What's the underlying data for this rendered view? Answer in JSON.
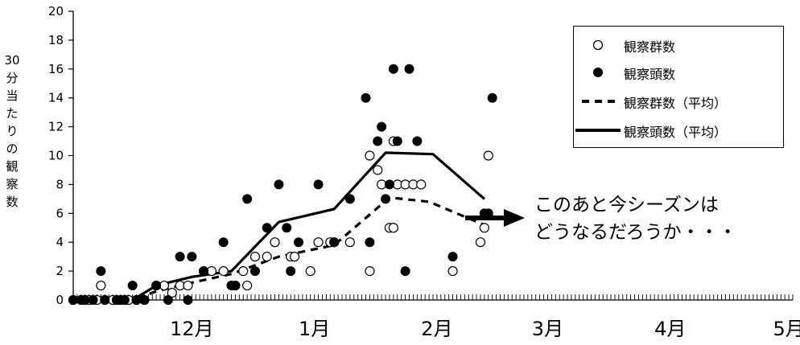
{
  "chart_data": {
    "type": "scatter",
    "title": "",
    "ylabel": "30分当たりの観察数",
    "ylim": [
      0,
      20
    ],
    "yticks": [
      0,
      2,
      4,
      6,
      8,
      10,
      12,
      14,
      16,
      18,
      20
    ],
    "xlim": [
      0,
      182
    ],
    "x_month_labels": [
      {
        "label": "12月",
        "x": 30
      },
      {
        "label": "1月",
        "x": 61
      },
      {
        "label": "2月",
        "x": 92
      },
      {
        "label": "3月",
        "x": 120
      },
      {
        "label": "4月",
        "x": 151
      },
      {
        "label": "5月",
        "x": 181
      }
    ],
    "grid": false,
    "legend_position": "top-right",
    "series": [
      {
        "name": "観察群数",
        "kind": "points",
        "marker": "open-circle",
        "points": [
          [
            0,
            0
          ],
          [
            2,
            0
          ],
          [
            3,
            0
          ],
          [
            4,
            0
          ],
          [
            6,
            0
          ],
          [
            7,
            1
          ],
          [
            8,
            0
          ],
          [
            10,
            0
          ],
          [
            11,
            0
          ],
          [
            12,
            0
          ],
          [
            13,
            0
          ],
          [
            14,
            0
          ],
          [
            16,
            0
          ],
          [
            18,
            0
          ],
          [
            21,
            1
          ],
          [
            23,
            1
          ],
          [
            25,
            0.5
          ],
          [
            27,
            1
          ],
          [
            29,
            1
          ],
          [
            33,
            2
          ],
          [
            35,
            2
          ],
          [
            38,
            2
          ],
          [
            41,
            1
          ],
          [
            43,
            2
          ],
          [
            44,
            1
          ],
          [
            46,
            3
          ],
          [
            49,
            3
          ],
          [
            51,
            4
          ],
          [
            55,
            3
          ],
          [
            56,
            3
          ],
          [
            60,
            2
          ],
          [
            62,
            4
          ],
          [
            65,
            4
          ],
          [
            66,
            4
          ],
          [
            70,
            4
          ],
          [
            75,
            10
          ],
          [
            77,
            9
          ],
          [
            78,
            8
          ],
          [
            80,
            5
          ],
          [
            81,
            5
          ],
          [
            81,
            11
          ],
          [
            82,
            8
          ],
          [
            84,
            8
          ],
          [
            86,
            8
          ],
          [
            88,
            8
          ],
          [
            75,
            2
          ],
          [
            96,
            2
          ],
          [
            103,
            4
          ],
          [
            104,
            5
          ],
          [
            105,
            10
          ]
        ]
      },
      {
        "name": "観察頭数",
        "kind": "points",
        "marker": "filled-circle",
        "points": [
          [
            0,
            0
          ],
          [
            2,
            0
          ],
          [
            3,
            0
          ],
          [
            5,
            0
          ],
          [
            7,
            2
          ],
          [
            8,
            0
          ],
          [
            11,
            0
          ],
          [
            12,
            0
          ],
          [
            13,
            0
          ],
          [
            15,
            1
          ],
          [
            16,
            0
          ],
          [
            18,
            0
          ],
          [
            21,
            1
          ],
          [
            24,
            0
          ],
          [
            27,
            3
          ],
          [
            29,
            0
          ],
          [
            30,
            3
          ],
          [
            33,
            2
          ],
          [
            38,
            4
          ],
          [
            40,
            1
          ],
          [
            41,
            1
          ],
          [
            44,
            7
          ],
          [
            46,
            2
          ],
          [
            49,
            5
          ],
          [
            52,
            8
          ],
          [
            54,
            5
          ],
          [
            55,
            2
          ],
          [
            57,
            4
          ],
          [
            62,
            8
          ],
          [
            66,
            4
          ],
          [
            70,
            7
          ],
          [
            74,
            14
          ],
          [
            75,
            4
          ],
          [
            77,
            11
          ],
          [
            78,
            12
          ],
          [
            79,
            7
          ],
          [
            80,
            8
          ],
          [
            81,
            16
          ],
          [
            82,
            11
          ],
          [
            84,
            2
          ],
          [
            85,
            16
          ],
          [
            87,
            11
          ],
          [
            96,
            3
          ],
          [
            104,
            6
          ],
          [
            105,
            6
          ],
          [
            106,
            14
          ]
        ]
      },
      {
        "name": "観察群数（平均）",
        "kind": "line",
        "style": "dashed",
        "points": [
          [
            0,
            0
          ],
          [
            15,
            0
          ],
          [
            21,
            0.6
          ],
          [
            30,
            1.2
          ],
          [
            40,
            1.8
          ],
          [
            52,
            3
          ],
          [
            66,
            3.8
          ],
          [
            80,
            7.1
          ],
          [
            90,
            6.8
          ],
          [
            104,
            5.2
          ]
        ]
      },
      {
        "name": "観察頭数（平均）",
        "kind": "line",
        "style": "solid",
        "points": [
          [
            0,
            0
          ],
          [
            15,
            0
          ],
          [
            21,
            1
          ],
          [
            30,
            1.6
          ],
          [
            40,
            2
          ],
          [
            52,
            5.4
          ],
          [
            66,
            6.3
          ],
          [
            79,
            10.2
          ],
          [
            91,
            10.1
          ],
          [
            104,
            7
          ]
        ]
      }
    ]
  },
  "annotation": {
    "line1": "このあと今シーズンは",
    "line2": "どうなるだろうか・・・"
  },
  "colors": {
    "axis": "#000000",
    "marker": "#000000",
    "background": "#ffffff"
  }
}
